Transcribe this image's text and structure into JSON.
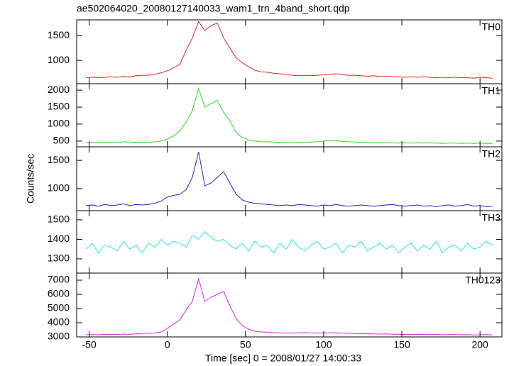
{
  "title": "ae502064020_20080127140033_wam1_trn_4band_short.qdp",
  "ylabel": "Counts/sec",
  "xlabel": "Time [sec] 0 = 2008/01/27 14:00:33",
  "chart_data": [
    {
      "type": "line",
      "label": "TH0",
      "color": "#e32222",
      "x": [
        -52,
        -48,
        -44,
        -40,
        -36,
        -32,
        -28,
        -24,
        -20,
        -16,
        -12,
        -8,
        -4,
        0,
        4,
        8,
        12,
        16,
        20,
        24,
        28,
        32,
        36,
        40,
        44,
        48,
        52,
        56,
        60,
        64,
        68,
        72,
        76,
        80,
        84,
        88,
        92,
        96,
        100,
        104,
        108,
        112,
        116,
        120,
        124,
        128,
        132,
        136,
        140,
        144,
        148,
        152,
        156,
        160,
        164,
        168,
        172,
        176,
        180,
        184,
        188,
        192,
        196,
        200,
        204,
        208
      ],
      "values": [
        650,
        660,
        650,
        660,
        670,
        660,
        680,
        660,
        690,
        700,
        700,
        720,
        750,
        790,
        850,
        920,
        1200,
        1450,
        1780,
        1600,
        1700,
        1750,
        1450,
        1250,
        1050,
        950,
        870,
        800,
        770,
        760,
        740,
        730,
        720,
        700,
        690,
        700,
        690,
        700,
        710,
        720,
        730,
        710,
        700,
        700,
        690,
        680,
        690,
        670,
        680,
        670,
        670,
        660,
        670,
        660,
        670,
        660,
        650,
        660,
        650,
        660,
        650,
        650,
        640,
        660,
        650,
        640
      ],
      "xlim": [
        -58,
        214
      ],
      "ylim": [
        530,
        1815
      ],
      "yticks": [
        1000,
        1500
      ]
    },
    {
      "type": "line",
      "label": "TH1",
      "color": "#22dd22",
      "x": [
        -52,
        -48,
        -44,
        -40,
        -36,
        -32,
        -28,
        -24,
        -20,
        -16,
        -12,
        -8,
        -4,
        0,
        4,
        8,
        12,
        16,
        20,
        24,
        28,
        32,
        36,
        40,
        44,
        48,
        52,
        56,
        60,
        64,
        68,
        72,
        76,
        80,
        84,
        88,
        92,
        96,
        100,
        104,
        108,
        112,
        116,
        120,
        124,
        128,
        132,
        136,
        140,
        144,
        148,
        152,
        156,
        160,
        164,
        168,
        172,
        176,
        180,
        184,
        188,
        192,
        196,
        200,
        204,
        208
      ],
      "values": [
        450,
        460,
        450,
        470,
        460,
        450,
        480,
        470,
        460,
        470,
        460,
        480,
        500,
        560,
        650,
        800,
        1050,
        1400,
        2050,
        1500,
        1600,
        1700,
        1350,
        1100,
        750,
        600,
        530,
        500,
        480,
        480,
        470,
        460,
        460,
        450,
        460,
        460,
        470,
        480,
        500,
        520,
        510,
        490,
        480,
        470,
        460,
        460,
        450,
        460,
        450,
        450,
        440,
        450,
        440,
        450,
        440,
        450,
        440,
        430,
        440,
        440,
        430,
        440,
        430,
        440,
        430,
        430
      ],
      "xlim": [
        -58,
        214
      ],
      "ylim": [
        330,
        2190
      ],
      "yticks": [
        500,
        1000,
        1500,
        2000
      ]
    },
    {
      "type": "line",
      "label": "TH2",
      "color": "#2222cc",
      "x": [
        -52,
        -48,
        -44,
        -40,
        -36,
        -32,
        -28,
        -24,
        -20,
        -16,
        -12,
        -8,
        -4,
        0,
        4,
        8,
        12,
        16,
        20,
        24,
        28,
        32,
        36,
        40,
        44,
        48,
        52,
        56,
        60,
        64,
        68,
        72,
        76,
        80,
        84,
        88,
        92,
        96,
        100,
        104,
        108,
        112,
        116,
        120,
        124,
        128,
        132,
        136,
        140,
        144,
        148,
        152,
        156,
        160,
        164,
        168,
        172,
        176,
        180,
        184,
        188,
        192,
        196,
        200,
        204,
        208
      ],
      "values": [
        700,
        710,
        690,
        720,
        700,
        710,
        730,
        700,
        720,
        710,
        720,
        740,
        780,
        850,
        880,
        900,
        980,
        1200,
        1650,
        1050,
        1100,
        1200,
        1300,
        1100,
        900,
        800,
        760,
        740,
        730,
        720,
        710,
        700,
        710,
        700,
        720,
        710,
        700,
        690,
        710,
        700,
        720,
        700,
        690,
        700,
        710,
        700,
        690,
        700,
        710,
        720,
        700,
        690,
        700,
        710,
        690,
        700,
        680,
        700,
        710,
        690,
        700,
        720,
        690,
        700,
        680,
        690
      ],
      "xlim": [
        -58,
        214
      ],
      "ylim": [
        610,
        1740
      ],
      "yticks": [
        1000,
        1500
      ]
    },
    {
      "type": "line",
      "label": "TH3",
      "color": "#22e5e5",
      "x": [
        -52,
        -48,
        -44,
        -40,
        -36,
        -32,
        -28,
        -24,
        -20,
        -16,
        -12,
        -8,
        -4,
        0,
        4,
        8,
        12,
        16,
        20,
        24,
        28,
        32,
        36,
        40,
        44,
        48,
        52,
        56,
        60,
        64,
        68,
        72,
        76,
        80,
        84,
        88,
        92,
        96,
        100,
        104,
        108,
        112,
        116,
        120,
        124,
        128,
        132,
        136,
        140,
        144,
        148,
        152,
        156,
        160,
        164,
        168,
        172,
        176,
        180,
        184,
        188,
        192,
        196,
        200,
        204,
        208
      ],
      "values": [
        1350,
        1380,
        1330,
        1370,
        1360,
        1340,
        1390,
        1350,
        1370,
        1330,
        1380,
        1360,
        1400,
        1370,
        1390,
        1380,
        1360,
        1420,
        1400,
        1440,
        1410,
        1390,
        1400,
        1370,
        1350,
        1380,
        1340,
        1390,
        1360,
        1370,
        1330,
        1380,
        1350,
        1400,
        1360,
        1340,
        1370,
        1390,
        1350,
        1360,
        1380,
        1330,
        1370,
        1360,
        1390,
        1340,
        1360,
        1380,
        1350,
        1370,
        1330,
        1360,
        1380,
        1340,
        1370,
        1350,
        1390,
        1330,
        1360,
        1370,
        1340,
        1380,
        1350,
        1360,
        1390,
        1370
      ],
      "xlim": [
        -58,
        214
      ],
      "ylim": [
        1227,
        1547
      ],
      "yticks": [
        1300,
        1400,
        1500
      ]
    },
    {
      "type": "line",
      "label": "TH0123",
      "color": "#e022e0",
      "x": [
        -52,
        -48,
        -44,
        -40,
        -36,
        -32,
        -28,
        -24,
        -20,
        -16,
        -12,
        -8,
        -4,
        0,
        4,
        8,
        12,
        16,
        20,
        24,
        28,
        32,
        36,
        40,
        44,
        48,
        52,
        56,
        60,
        64,
        68,
        72,
        76,
        80,
        84,
        88,
        92,
        96,
        100,
        104,
        108,
        112,
        116,
        120,
        124,
        128,
        132,
        136,
        140,
        144,
        148,
        152,
        156,
        160,
        164,
        168,
        172,
        176,
        180,
        184,
        188,
        192,
        196,
        200,
        204,
        208
      ],
      "values": [
        3150,
        3170,
        3150,
        3180,
        3170,
        3160,
        3200,
        3180,
        3220,
        3250,
        3260,
        3280,
        3350,
        3600,
        3900,
        4200,
        4900,
        5500,
        7100,
        5500,
        5800,
        6000,
        6200,
        5200,
        4300,
        3800,
        3550,
        3400,
        3350,
        3330,
        3300,
        3290,
        3280,
        3270,
        3290,
        3300,
        3280,
        3270,
        3290,
        3280,
        3300,
        3270,
        3250,
        3240,
        3220,
        3230,
        3210,
        3200,
        3210,
        3190,
        3180,
        3190,
        3170,
        3180,
        3170,
        3160,
        3180,
        3150,
        3160,
        3170,
        3150,
        3160,
        3140,
        3150,
        3160,
        3140
      ],
      "xlim": [
        -58,
        214
      ],
      "ylim": [
        3000,
        7500
      ],
      "yticks": [
        3000,
        4000,
        5000,
        6000,
        7000
      ],
      "xticks": [
        -50,
        0,
        50,
        100,
        150,
        200
      ]
    }
  ]
}
